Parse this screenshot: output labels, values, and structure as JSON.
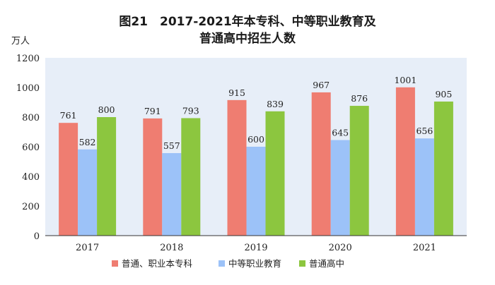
{
  "chart_data": {
    "type": "bar",
    "title_line1": "图21　2017-2021年本专科、中等职业教育及",
    "title_line2": "普通高中招生人数",
    "ylabel": "万人",
    "xlabel": "",
    "ylim": [
      0,
      1200
    ],
    "yticks": [
      0,
      200,
      400,
      600,
      800,
      1000,
      1200
    ],
    "grid": false,
    "legend_position": "bottom",
    "categories": [
      "2017",
      "2018",
      "2019",
      "2020",
      "2021"
    ],
    "series": [
      {
        "name": "普通、职业本专科",
        "color": "#ef7d71",
        "values": [
          761,
          791,
          915,
          967,
          1001
        ]
      },
      {
        "name": "中等职业教育",
        "color": "#9cc2f8",
        "values": [
          582,
          557,
          600,
          645,
          656
        ]
      },
      {
        "name": "普通高中",
        "color": "#8cc63f",
        "values": [
          800,
          793,
          839,
          876,
          905
        ]
      }
    ]
  }
}
